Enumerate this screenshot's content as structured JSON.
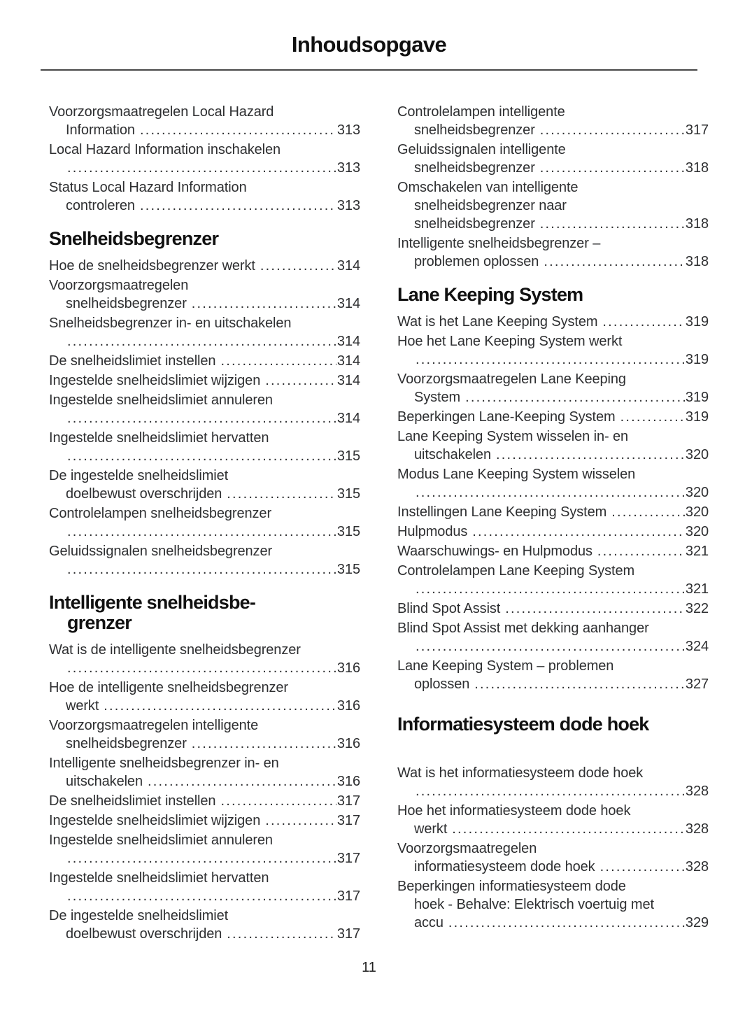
{
  "header": {
    "title": "Inhoudsopgave"
  },
  "footer": {
    "page_number": "11"
  },
  "toc": {
    "columns": [
      {
        "blocks": [
          {
            "type": "entries",
            "items": [
              {
                "lines": [
                  "Voorzorgsmaatregelen Local Hazard",
                  "Information"
                ],
                "page": "313"
              },
              {
                "lines": [
                  "Local Hazard Information inschakelen",
                  ""
                ],
                "page": "313"
              },
              {
                "lines": [
                  "Status Local Hazard Information",
                  "controleren"
                ],
                "page": "313"
              }
            ]
          },
          {
            "type": "heading",
            "lines": [
              "Snelheidsbegrenzer"
            ]
          },
          {
            "type": "entries",
            "items": [
              {
                "lines": [
                  "Hoe de snelheidsbegrenzer werkt"
                ],
                "page": "314"
              },
              {
                "lines": [
                  "Voorzorgsmaatregelen",
                  "snelheidsbegrenzer"
                ],
                "page": "314"
              },
              {
                "lines": [
                  "Snelheidsbegrenzer in- en uitschakelen",
                  ""
                ],
                "page": "314"
              },
              {
                "lines": [
                  "De snelheidslimiet instellen"
                ],
                "page": "314"
              },
              {
                "lines": [
                  "Ingestelde snelheidslimiet wijzigen"
                ],
                "page": "314"
              },
              {
                "lines": [
                  "Ingestelde snelheidslimiet annuleren",
                  ""
                ],
                "page": "314"
              },
              {
                "lines": [
                  "Ingestelde snelheidslimiet hervatten",
                  ""
                ],
                "page": "315"
              },
              {
                "lines": [
                  "De ingestelde snelheidslimiet",
                  "doelbewust overschrijden"
                ],
                "page": "315"
              },
              {
                "lines": [
                  "Controlelampen snelheidsbegrenzer",
                  ""
                ],
                "page": "315"
              },
              {
                "lines": [
                  "Geluidssignalen snelheidsbegrenzer",
                  ""
                ],
                "page": "315"
              }
            ]
          },
          {
            "type": "heading",
            "lines": [
              "Intelligente snelheidsbe-",
              "grenzer"
            ]
          },
          {
            "type": "entries",
            "items": [
              {
                "lines": [
                  "Wat is de intelligente snelheidsbegrenzer",
                  ""
                ],
                "page": "316"
              },
              {
                "lines": [
                  "Hoe de intelligente snelheidsbegrenzer",
                  "werkt"
                ],
                "page": "316"
              },
              {
                "lines": [
                  "Voorzorgsmaatregelen intelligente",
                  "snelheidsbegrenzer"
                ],
                "page": "316"
              },
              {
                "lines": [
                  "Intelligente snelheidsbegrenzer in- en",
                  "uitschakelen"
                ],
                "page": "316"
              },
              {
                "lines": [
                  "De snelheidslimiet instellen"
                ],
                "page": "317"
              },
              {
                "lines": [
                  "Ingestelde snelheidslimiet wijzigen"
                ],
                "page": "317"
              },
              {
                "lines": [
                  "Ingestelde snelheidslimiet annuleren",
                  ""
                ],
                "page": "317"
              },
              {
                "lines": [
                  "Ingestelde snelheidslimiet hervatten",
                  ""
                ],
                "page": "317"
              },
              {
                "lines": [
                  "De ingestelde snelheidslimiet",
                  "doelbewust overschrijden"
                ],
                "page": "317"
              }
            ]
          }
        ]
      },
      {
        "blocks": [
          {
            "type": "entries",
            "items": [
              {
                "lines": [
                  "Controlelampen intelligente",
                  "snelheidsbegrenzer"
                ],
                "page": "317"
              },
              {
                "lines": [
                  "Geluidssignalen intelligente",
                  "snelheidsbegrenzer"
                ],
                "page": "318"
              },
              {
                "lines": [
                  "Omschakelen van intelligente",
                  "snelheidsbegrenzer naar",
                  "snelheidsbegrenzer"
                ],
                "page": "318"
              },
              {
                "lines": [
                  "Intelligente snelheidsbegrenzer –",
                  "problemen oplossen"
                ],
                "page": "318"
              }
            ]
          },
          {
            "type": "heading",
            "lines": [
              "Lane Keeping System"
            ]
          },
          {
            "type": "entries",
            "items": [
              {
                "lines": [
                  "Wat is het Lane Keeping System"
                ],
                "page": "319"
              },
              {
                "lines": [
                  "Hoe het Lane Keeping System werkt",
                  ""
                ],
                "page": "319"
              },
              {
                "lines": [
                  "Voorzorgsmaatregelen Lane Keeping",
                  "System"
                ],
                "page": "319"
              },
              {
                "lines": [
                  "Beperkingen Lane-Keeping System"
                ],
                "page": "319"
              },
              {
                "lines": [
                  "Lane Keeping System wisselen in- en",
                  "uitschakelen"
                ],
                "page": "320"
              },
              {
                "lines": [
                  "Modus Lane Keeping System wisselen",
                  ""
                ],
                "page": "320"
              },
              {
                "lines": [
                  "Instellingen Lane Keeping System"
                ],
                "page": "320"
              },
              {
                "lines": [
                  "Hulpmodus"
                ],
                "page": "320"
              },
              {
                "lines": [
                  "Waarschuwings- en Hulpmodus"
                ],
                "page": "321"
              },
              {
                "lines": [
                  "Controlelampen Lane Keeping System",
                  ""
                ],
                "page": "321"
              },
              {
                "lines": [
                  "Blind Spot Assist"
                ],
                "page": "322"
              },
              {
                "lines": [
                  "Blind Spot Assist met dekking aanhanger",
                  ""
                ],
                "page": "324"
              },
              {
                "lines": [
                  "Lane Keeping System – problemen",
                  "oplossen"
                ],
                "page": "327"
              }
            ]
          },
          {
            "type": "heading",
            "lines": [
              "Informatiesysteem dode hoek"
            ],
            "extra_space": true
          },
          {
            "type": "entries",
            "items": [
              {
                "lines": [
                  "Wat is het informatiesysteem dode hoek",
                  ""
                ],
                "page": "328"
              },
              {
                "lines": [
                  "Hoe het informatiesysteem dode hoek",
                  "werkt"
                ],
                "page": "328"
              },
              {
                "lines": [
                  "Voorzorgsmaatregelen",
                  "informatiesysteem dode hoek"
                ],
                "page": "328"
              },
              {
                "lines": [
                  "Beperkingen informatiesysteem dode",
                  "hoek - Behalve: Elektrisch voertuig met",
                  "accu"
                ],
                "page": "329"
              }
            ]
          }
        ]
      }
    ]
  }
}
